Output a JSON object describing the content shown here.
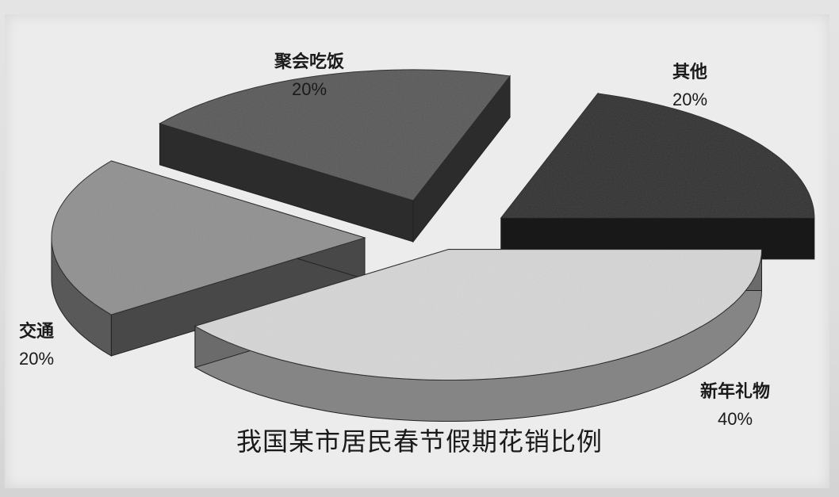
{
  "chart_data": {
    "type": "pie",
    "style": "3d-exploded",
    "title": "我国某市居民春节假期花销比例",
    "slices": [
      {
        "label": "新年礼物",
        "value": 40,
        "display": "40%",
        "color": "#d6d6d6"
      },
      {
        "label": "交通",
        "value": 20,
        "display": "20%",
        "color": "#8f8f8f"
      },
      {
        "label": "聚会吃饭",
        "value": 20,
        "display": "20%",
        "color": "#575757"
      },
      {
        "label": "其他",
        "value": 20,
        "display": "20%",
        "color": "#2f2f2f"
      }
    ]
  }
}
